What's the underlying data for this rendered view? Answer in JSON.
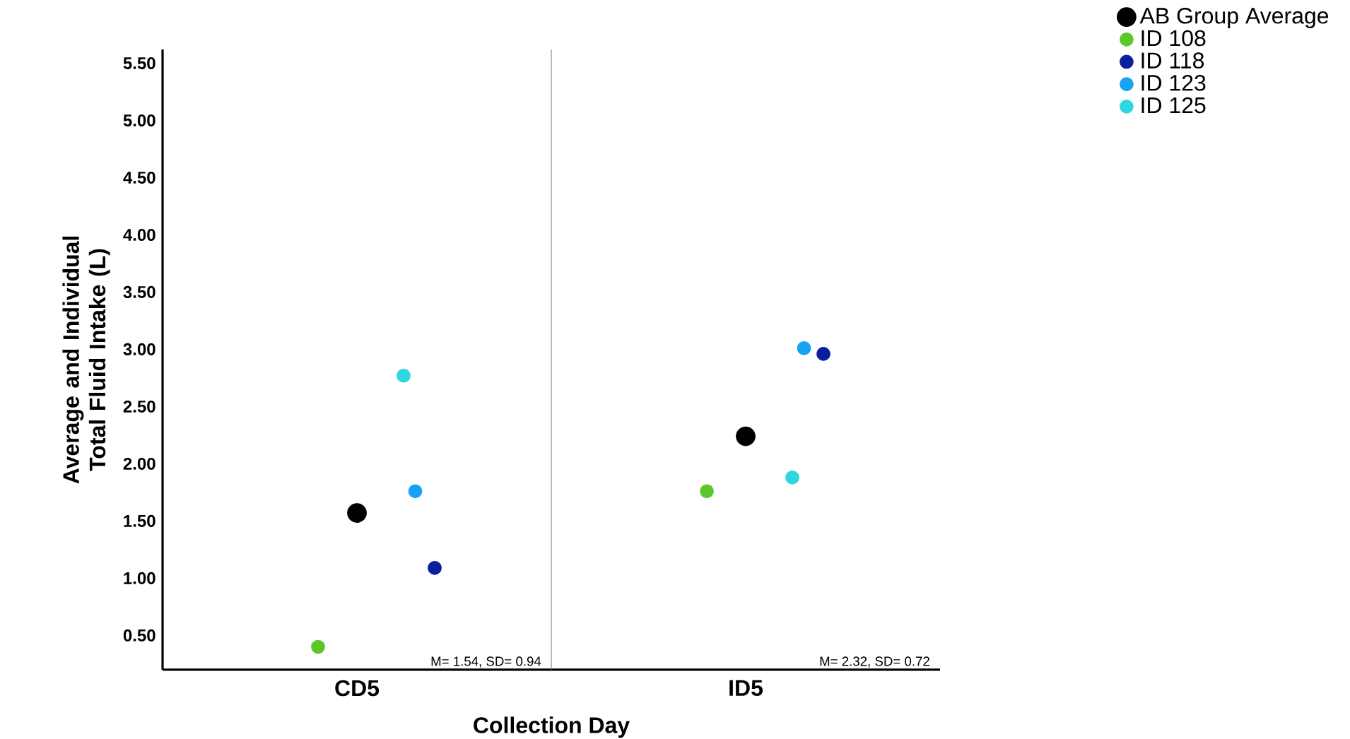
{
  "chart_data": {
    "type": "scatter",
    "xlabel": "Collection Day",
    "ylabel": "Average and Individual Total Fluid Intake (L)",
    "categories": [
      "CD5",
      "ID5"
    ],
    "series": [
      {
        "name": "AB Group Average",
        "color": "#000000",
        "values": [
          1.57,
          2.24
        ]
      },
      {
        "name": "ID 108",
        "color": "#5cc72a",
        "values": [
          0.4,
          1.76
        ]
      },
      {
        "name": "ID 118",
        "color": "#0a1f9c",
        "values": [
          1.09,
          2.96
        ]
      },
      {
        "name": "ID 123",
        "color": "#17a2f5",
        "values": [
          1.76,
          3.01
        ]
      },
      {
        "name": "ID 125",
        "color": "#2fd8e0",
        "values": [
          2.77,
          1.88
        ]
      }
    ],
    "ylim": [
      0.2,
      5.62
    ],
    "yticks": [
      {
        "value": 0.5,
        "label": "0.50"
      },
      {
        "value": 1.0,
        "label": "1.00"
      },
      {
        "value": 1.5,
        "label": "1.50"
      },
      {
        "value": 2.0,
        "label": "2.00"
      },
      {
        "value": 2.5,
        "label": "2.50"
      },
      {
        "value": 3.0,
        "label": "3.00"
      },
      {
        "value": 3.5,
        "label": "3.50"
      },
      {
        "value": 4.0,
        "label": "4.00"
      },
      {
        "value": 4.5,
        "label": "4.50"
      },
      {
        "value": 5.0,
        "label": "5.00"
      },
      {
        "value": 5.5,
        "label": "5.50"
      }
    ],
    "annotations": [
      "M= 1.54, SD= 0.94",
      "M= 2.32, SD= 0.72"
    ],
    "legend": "top right",
    "marker": "circle"
  }
}
